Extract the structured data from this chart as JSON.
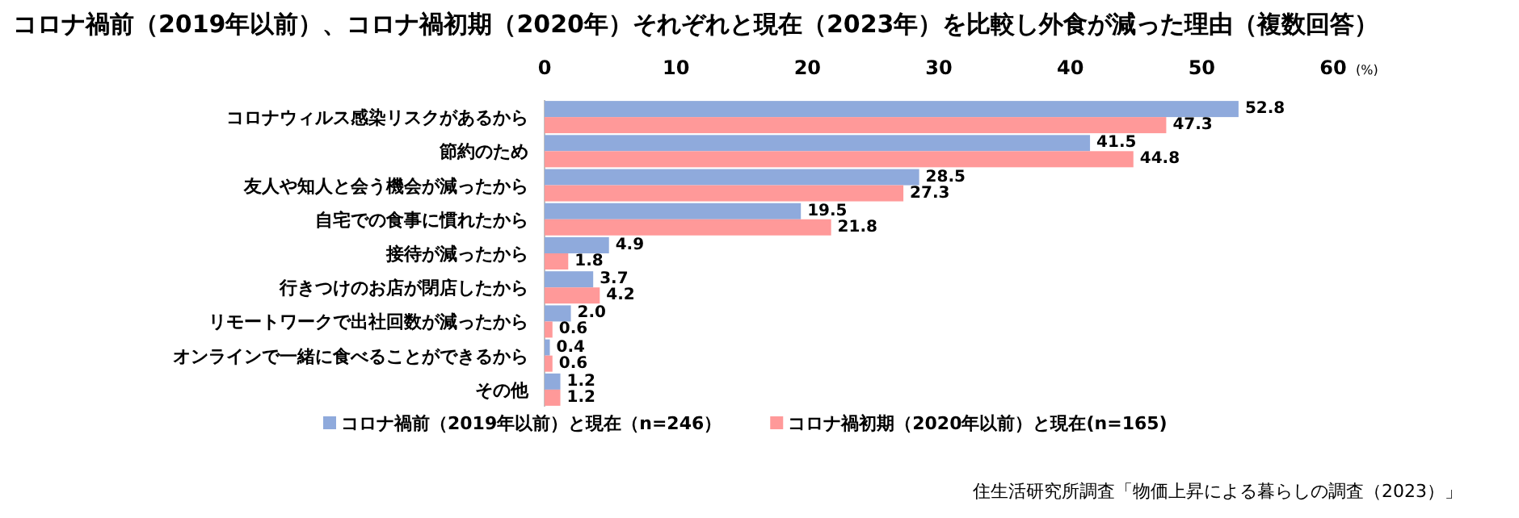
{
  "chart_data": {
    "type": "bar",
    "orientation": "horizontal",
    "title": "コロナ禍前（2019年以前）、コロナ禍初期（2020年）それぞれと現在（2023年）を比較し外食が減った理由（複数回答）",
    "xlabel": "(%)",
    "categories": [
      "コロナウィルス感染リスクがあるから",
      "節約のため",
      "友人や知人と会う機会が減ったから",
      "自宅での食事に慣れたから",
      "接待が減ったから",
      "行きつけのお店が閉店したから",
      "リモートワークで出社回数が減ったから",
      "オンラインで一緒に食べることができるから",
      "その他"
    ],
    "series": [
      {
        "name": "コロナ禍前（2019年以前）と現在（n=246）",
        "color": "#8faadc",
        "values": [
          52.8,
          41.5,
          28.5,
          19.5,
          4.9,
          3.7,
          2.0,
          0.4,
          1.2
        ],
        "value_labels": [
          "52.8",
          "41.5",
          "28.5",
          "19.5",
          "4.9",
          "3.7",
          "2.0",
          "0.4",
          "1.2"
        ]
      },
      {
        "name": "コロナ禍初期（2020年以前）と現在(n=165)",
        "color": "#ff9999",
        "values": [
          47.3,
          44.8,
          27.3,
          21.8,
          1.8,
          4.2,
          0.6,
          0.6,
          1.2
        ],
        "value_labels": [
          "47.3",
          "44.8",
          "27.3",
          "21.8",
          "1.8",
          "4.2",
          "0.6",
          "0.6",
          "1.2"
        ]
      }
    ],
    "xlim": [
      0,
      60
    ],
    "xticks": [
      0,
      10,
      20,
      30,
      40,
      50,
      60
    ],
    "legend": "bottom",
    "annotations": [
      "住生活研究所調査「物価上昇による暮らしの調査（2023）」"
    ]
  }
}
